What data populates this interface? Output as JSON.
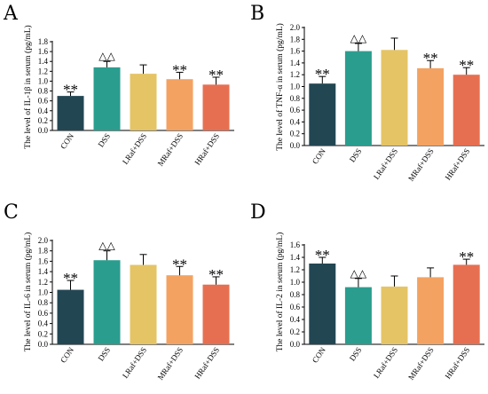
{
  "figure": {
    "panels": [
      {
        "letter": "A",
        "ylabel": "The level of IL-1β in serum (pg/mL)"
      },
      {
        "letter": "B",
        "ylabel": "The level of TNF-α in serum (pg/mL)"
      },
      {
        "letter": "C",
        "ylabel": "The level of IL-6 in serum (pg/mL)"
      },
      {
        "letter": "D",
        "ylabel": "The level of IL-2 in serum (pg/mL)"
      }
    ]
  },
  "chart_data": [
    {
      "type": "bar",
      "panel": "A",
      "ylabel": "The level of IL-1β in serum (pg/mL)",
      "categories": [
        "CON",
        "DSS",
        "LRaf+DSS",
        "MRaf+DSS",
        "HRaf+DSS"
      ],
      "values": [
        0.7,
        1.28,
        1.15,
        1.04,
        0.93
      ],
      "errors": [
        0.08,
        0.12,
        0.18,
        0.14,
        0.15
      ],
      "annotations": [
        "**",
        "△△",
        "",
        "**",
        "**"
      ],
      "ylim": [
        0,
        1.8
      ],
      "yticks": [
        "0.0",
        "0.2",
        "0.4",
        "0.6",
        "0.8",
        "1.0",
        "1.2",
        "1.4",
        "1.6",
        "1.8"
      ],
      "colors": [
        "#234653",
        "#2a9d8f",
        "#e5c465",
        "#f4a261",
        "#e76f51"
      ]
    },
    {
      "type": "bar",
      "panel": "B",
      "ylabel": "The level of TNF-α in serum (pg/mL)",
      "categories": [
        "CON",
        "DSS",
        "LRaf+DSS",
        "MRaf+DSS",
        "HRaf+DSS"
      ],
      "values": [
        1.05,
        1.6,
        1.62,
        1.31,
        1.2
      ],
      "errors": [
        0.12,
        0.13,
        0.2,
        0.13,
        0.12
      ],
      "annotations": [
        "**",
        "△△",
        "",
        "**",
        "**"
      ],
      "ylim": [
        0,
        2.0
      ],
      "yticks": [
        "0.0",
        "0.2",
        "0.4",
        "0.6",
        "0.8",
        "1.0",
        "1.2",
        "1.4",
        "1.6",
        "1.8",
        "2.0"
      ],
      "colors": [
        "#234653",
        "#2a9d8f",
        "#e5c465",
        "#f4a261",
        "#e76f51"
      ]
    },
    {
      "type": "bar",
      "panel": "C",
      "ylabel": "The level of IL-6 in serum (pg/mL)",
      "categories": [
        "CON",
        "DSS",
        "LRaf+DSS",
        "MRaf+DSS",
        "HRaf+DSS"
      ],
      "values": [
        1.05,
        1.62,
        1.53,
        1.33,
        1.15
      ],
      "errors": [
        0.18,
        0.18,
        0.2,
        0.17,
        0.15
      ],
      "annotations": [
        "**",
        "△△",
        "",
        "**",
        "**"
      ],
      "ylim": [
        0,
        2.0
      ],
      "yticks": [
        "0.0",
        "0.2",
        "0.4",
        "0.6",
        "0.8",
        "1.0",
        "1.2",
        "1.4",
        "1.6",
        "1.8",
        "2.0"
      ],
      "colors": [
        "#234653",
        "#2a9d8f",
        "#e5c465",
        "#f4a261",
        "#e76f51"
      ]
    },
    {
      "type": "bar",
      "panel": "D",
      "ylabel": "The level of IL-2 in serum (pg/mL)",
      "categories": [
        "CON",
        "DSS",
        "LRaf+DSS",
        "MRaf+DSS",
        "HRaf+DSS"
      ],
      "values": [
        1.3,
        0.92,
        0.93,
        1.08,
        1.28
      ],
      "errors": [
        0.1,
        0.14,
        0.17,
        0.15,
        0.09
      ],
      "annotations": [
        "**",
        "△△",
        "",
        "",
        "**"
      ],
      "ylim": [
        0,
        1.6
      ],
      "yticks": [
        "0.0",
        "0.2",
        "0.4",
        "0.6",
        "0.8",
        "1.0",
        "1.2",
        "1.4",
        "1.6"
      ],
      "colors": [
        "#234653",
        "#2a9d8f",
        "#e5c465",
        "#f4a261",
        "#e76f51"
      ]
    }
  ]
}
